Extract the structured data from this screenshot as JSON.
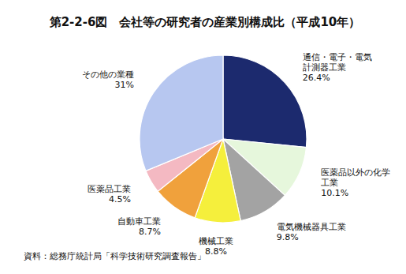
{
  "chart_data": {
    "type": "pie",
    "title": "第2-2-6図　会社等の研究者の産業別構成比（平成10年）",
    "categories": [
      "通信・電子・電気\n計測器工業",
      "医薬品以外の化学\n工業",
      "電気機械器具工業",
      "機械工業",
      "自動車工業",
      "医薬品工業",
      "その他の業種"
    ],
    "values": [
      26.4,
      10.1,
      9.8,
      8.8,
      8.7,
      4.5,
      31
    ],
    "value_labels": [
      "26.4%",
      "10.1%",
      "9.8%",
      "8.8%",
      "8.7%",
      "4.5%",
      "31%"
    ],
    "colors": [
      "#1c2a6e",
      "#e6f7dc",
      "#a3a3a3",
      "#f5ef3c",
      "#f0a13c",
      "#f4b9c2",
      "#b7c7f0"
    ],
    "data_labels": true,
    "source": "資料：総務庁統計局「科学技術研究調査報告」"
  }
}
